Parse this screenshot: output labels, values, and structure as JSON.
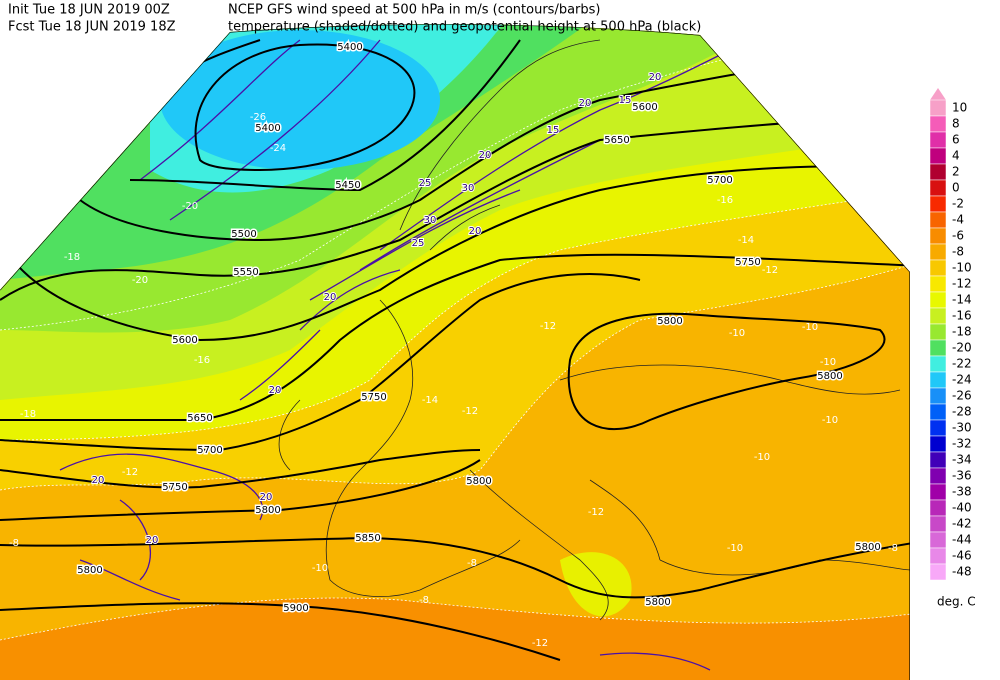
{
  "header": {
    "init": "Init  Tue 18 JUN 2019 00Z",
    "fcst": "Fcst  Tue 18 JUN 2019 18Z",
    "title_line1": "NCEP GFS wind speed at 500 hPa in m/s (contours/barbs)",
    "title_line2": "temperature (shaded/dotted) and geopotential height at 500 hPa (black)"
  },
  "colorbar": {
    "levels": [
      10,
      8,
      6,
      4,
      2,
      0,
      -2,
      -4,
      -6,
      -8,
      -10,
      -12,
      -14,
      -16,
      -18,
      -20,
      -22,
      -24,
      -26,
      -28,
      -30,
      -32,
      -34,
      -36,
      -38,
      -40,
      -42,
      -44,
      -46,
      -48
    ],
    "colors": [
      "#f7a0c8",
      "#f55cb8",
      "#e02fa8",
      "#c0007e",
      "#b00030",
      "#d81010",
      "#f82a00",
      "#f86400",
      "#f88c00",
      "#f8aa00",
      "#f8c800",
      "#f8e800",
      "#e8f800",
      "#c8f020",
      "#98e830",
      "#50e060",
      "#40eee0",
      "#20c8f8",
      "#1890f8",
      "#0060f8",
      "#0030f0",
      "#0000d0",
      "#4000b8",
      "#8000b0",
      "#a000a8",
      "#b828b8",
      "#c848c8",
      "#d868d8",
      "#e888e8",
      "#f8a8f8"
    ],
    "over_color": "#f7a0c8",
    "unit": "deg. C"
  },
  "height_labels": [
    5400,
    5400,
    5450,
    5500,
    5550,
    5600,
    5650,
    5700,
    5750,
    5800,
    5850,
    5900,
    5800,
    5750,
    5800,
    5800,
    5750,
    5700,
    5650,
    5600,
    5800,
    5800,
    5800
  ],
  "temperature_labels": [
    -26,
    -24,
    -20,
    -18,
    -20,
    -16,
    -18,
    -16,
    -14,
    -12,
    -12,
    -10,
    -10,
    -10,
    -10,
    -10,
    -12,
    -12,
    -10,
    -8,
    -10,
    -8,
    -8,
    -12,
    -8,
    -12,
    -14
  ],
  "wind_labels": [
    20,
    20,
    15,
    20,
    25,
    30,
    30,
    25,
    20,
    20,
    20,
    20,
    20,
    20,
    15
  ]
}
